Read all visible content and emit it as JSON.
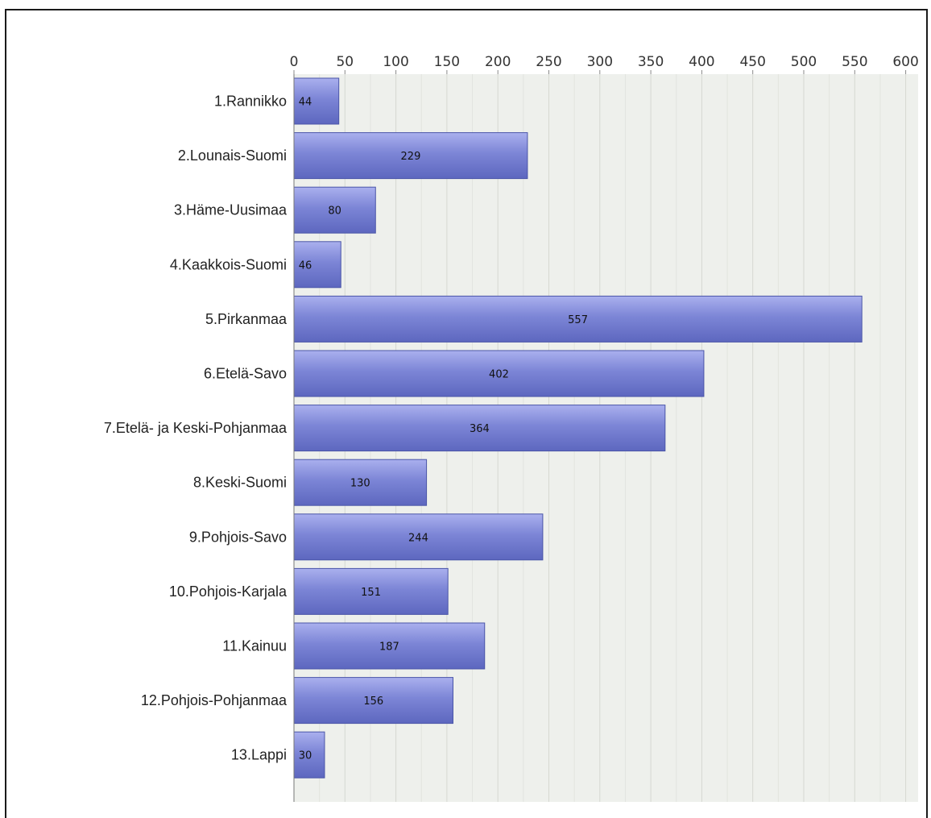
{
  "chart_data": {
    "type": "bar",
    "orientation": "horizontal",
    "title": "",
    "xlabel": "",
    "ylabel": "",
    "categories": [
      "1.Rannikko",
      "2.Lounais-Suomi",
      "3.Häme-Uusimaa",
      "4.Kaakkois-Suomi",
      "5.Pirkanmaa",
      "6.Etelä-Savo",
      "7.Etelä- ja Keski-Pohjanmaa",
      "8.Keski-Suomi",
      "9.Pohjois-Savo",
      "10.Pohjois-Karjala",
      "11.Kainuu",
      "12.Pohjois-Pohjanmaa",
      "13.Lappi"
    ],
    "values": [
      44,
      229,
      80,
      46,
      557,
      402,
      364,
      130,
      244,
      151,
      187,
      156,
      30
    ],
    "xlim": [
      0,
      610
    ],
    "ticks": [
      "0",
      "50",
      "100",
      "150",
      "200",
      "250",
      "300",
      "350",
      "400",
      "450",
      "500",
      "550",
      "600"
    ],
    "axis_position": "top",
    "grid": true,
    "bar_color": "#7b84d3",
    "bar_edge_color": "#4a55a8",
    "plot_background": "#eef0ec"
  }
}
